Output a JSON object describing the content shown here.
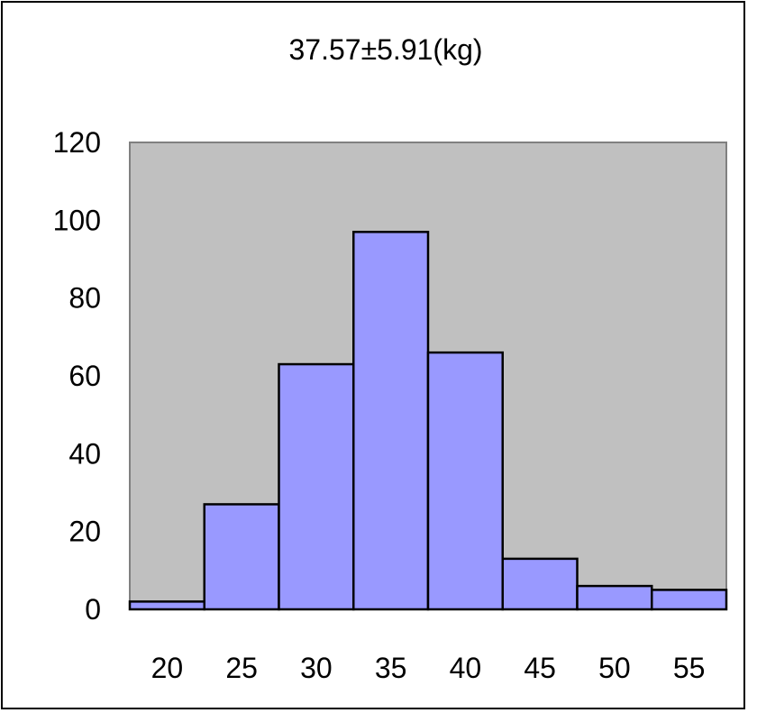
{
  "chart_data": {
    "type": "bar",
    "title": "37.57±5.91(kg)",
    "xlabel": "",
    "ylabel": "",
    "categories": [
      "20",
      "25",
      "30",
      "35",
      "40",
      "45",
      "50",
      "55"
    ],
    "values": [
      2,
      27,
      63,
      97,
      66,
      13,
      6,
      5
    ],
    "ylim": [
      0,
      120
    ],
    "yticks": [
      "0",
      "20",
      "40",
      "60",
      "80",
      "100",
      "120"
    ],
    "grid": false,
    "legend": "none",
    "colors": {
      "bar_fill": "#9999ff",
      "bar_stroke": "#000000",
      "plot_background": "#c0c0c0",
      "plot_border": "#808080"
    }
  }
}
